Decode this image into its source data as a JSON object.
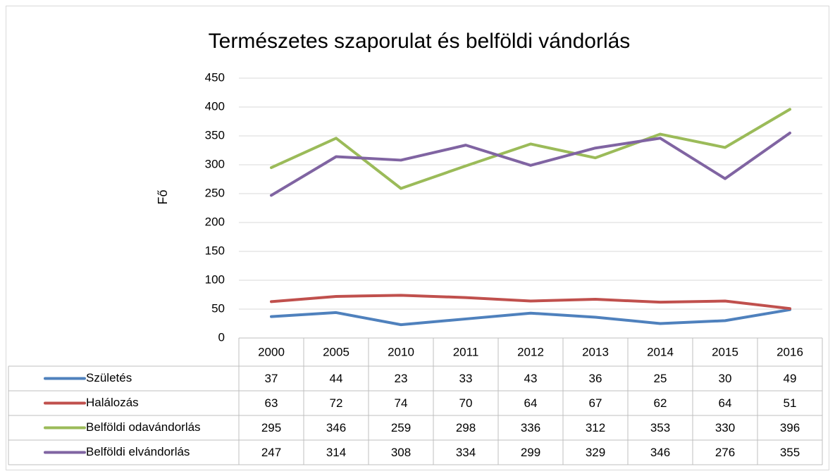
{
  "chart_data": {
    "type": "line",
    "title": "Természetes szaporulat és belföldi vándorlás",
    "y_label": "Fő",
    "categories": [
      "2000",
      "2005",
      "2010",
      "2011",
      "2012",
      "2013",
      "2014",
      "2015",
      "2016"
    ],
    "series": [
      {
        "name": "Születés",
        "color": "#4f81bd",
        "values": [
          37,
          44,
          23,
          33,
          43,
          36,
          25,
          30,
          49
        ]
      },
      {
        "name": "Halálozás",
        "color": "#c0504d",
        "values": [
          63,
          72,
          74,
          70,
          64,
          67,
          62,
          64,
          51
        ]
      },
      {
        "name": "Belföldi odavándorlás",
        "color": "#9bbb59",
        "values": [
          295,
          346,
          259,
          298,
          336,
          312,
          353,
          330,
          396
        ]
      },
      {
        "name": "Belföldi elvándorlás",
        "color": "#8064a2",
        "values": [
          247,
          314,
          308,
          334,
          299,
          329,
          346,
          276,
          355
        ]
      }
    ],
    "ylim": [
      0,
      450
    ],
    "yticks": [
      0,
      50,
      100,
      150,
      200,
      250,
      300,
      350,
      400,
      450
    ],
    "grid": true
  }
}
